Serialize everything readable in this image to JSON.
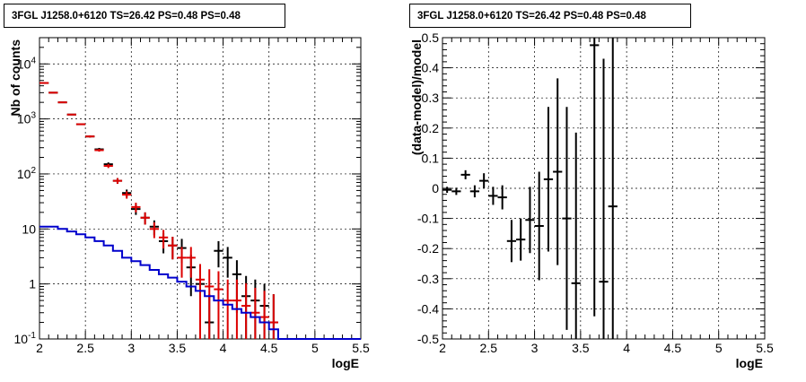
{
  "chart_data": [
    {
      "type": "histogram",
      "title": "3FGL J1258.0+6120 TS=26.42 PS=0.48 PS=0.48",
      "xlabel": "logE",
      "ylabel": "Nb of counts",
      "xlim": [
        2,
        5.5
      ],
      "ylim": [
        0.1,
        30000
      ],
      "yscale": "log",
      "grid": true,
      "xticks": [
        "2",
        "2.5",
        "3",
        "3.5",
        "4",
        "4.5",
        "5",
        "5.5"
      ],
      "yticks": [
        "10^{-1}",
        "1",
        "10",
        "10^{2}",
        "10^{3}",
        "10^{4}"
      ],
      "series": [
        {
          "color": "#000000",
          "style": "errorbar",
          "x": [
            2.05,
            2.15,
            2.25,
            2.35,
            2.45,
            2.55,
            2.65,
            2.75,
            2.85,
            2.95,
            3.05,
            3.15,
            3.25,
            3.35,
            3.45,
            3.55,
            3.65,
            3.75,
            3.85,
            3.95,
            4.05,
            4.15,
            4.25,
            4.35,
            4.45,
            4.55
          ],
          "y": [
            4500,
            3000,
            2000,
            1200,
            800,
            480,
            280,
            150,
            75,
            45,
            23,
            16,
            11,
            6,
            5,
            4.5,
            2,
            1,
            0.2,
            4,
            3,
            1.5,
            0.6,
            0.5,
            0.4,
            0.2
          ],
          "err": [
            67,
            55,
            45,
            35,
            28,
            22,
            17,
            12,
            9,
            7,
            5,
            4,
            3.3,
            2.4,
            2.2,
            2.1,
            1.4,
            1.0,
            0.45,
            2.0,
            1.7,
            1.2,
            0.8,
            0.7,
            0.6,
            0.45
          ]
        },
        {
          "color": "#dd0000",
          "style": "errorbar",
          "x": [
            2.05,
            2.15,
            2.25,
            2.35,
            2.45,
            2.55,
            2.65,
            2.75,
            2.85,
            2.95,
            3.05,
            3.15,
            3.25,
            3.35,
            3.45,
            3.55,
            3.65,
            3.75,
            3.85,
            3.95,
            4.05,
            4.15,
            4.25,
            4.35,
            4.45,
            4.55
          ],
          "y": [
            4500,
            3000,
            2000,
            1200,
            800,
            480,
            270,
            140,
            75,
            42,
            25,
            16,
            10,
            7,
            5,
            3,
            3,
            1.2,
            0.9,
            0.8,
            0.5,
            0.5,
            0.4,
            0.3,
            0.25,
            0.2
          ],
          "err": [
            67,
            55,
            45,
            35,
            28,
            22,
            16,
            12,
            9,
            6.5,
            5,
            4,
            3.2,
            2.6,
            2.2,
            1.7,
            1.7,
            1.1,
            0.95,
            0.9,
            0.7,
            0.7,
            0.63,
            0.55,
            0.5,
            0.45
          ]
        },
        {
          "color": "#0000cc",
          "style": "step",
          "x": [
            2.05,
            2.15,
            2.25,
            2.35,
            2.45,
            2.55,
            2.65,
            2.75,
            2.85,
            2.95,
            3.05,
            3.15,
            3.25,
            3.35,
            3.45,
            3.55,
            3.65,
            3.75,
            3.85,
            3.95,
            4.05,
            4.15,
            4.25,
            4.35,
            4.45,
            4.55,
            4.65,
            4.75,
            4.85,
            4.95,
            5.05,
            5.15,
            5.25,
            5.35,
            5.45
          ],
          "y": [
            11,
            11,
            10,
            9,
            8,
            7,
            6,
            5,
            4,
            3,
            2.6,
            2.2,
            1.8,
            1.5,
            1.3,
            1.1,
            0.9,
            0.75,
            0.6,
            0.5,
            0.42,
            0.35,
            0.3,
            0.25,
            0.2,
            0.15,
            0.1,
            0.1,
            0.1,
            0.1,
            0.1,
            0.1,
            0.1,
            0.1,
            0.1
          ]
        }
      ]
    },
    {
      "type": "scatter",
      "title": "3FGL J1258.0+6120 TS=26.42 PS=0.48 PS=0.48",
      "xlabel": "logE",
      "ylabel": "(data-model)/model",
      "xlim": [
        2,
        5.5
      ],
      "ylim": [
        -0.5,
        0.5
      ],
      "grid": true,
      "xticks": [
        "2",
        "2.5",
        "3",
        "3.5",
        "4",
        "4.5",
        "5",
        "5.5"
      ],
      "yticks": [
        "-0.5",
        "-0.4",
        "-0.3",
        "-0.2",
        "-0.1",
        "0",
        "0.1",
        "0.2",
        "0.3",
        "0.4",
        "0.5"
      ],
      "series": [
        {
          "color": "#000000",
          "style": "errorbar",
          "x": [
            2.05,
            2.15,
            2.25,
            2.35,
            2.45,
            2.55,
            2.65,
            2.75,
            2.85,
            2.95,
            3.05,
            3.15,
            3.25,
            3.35,
            3.45,
            3.65,
            3.75,
            3.85
          ],
          "y": [
            -0.005,
            -0.01,
            0.045,
            -0.01,
            0.025,
            -0.025,
            -0.03,
            -0.175,
            -0.17,
            -0.105,
            -0.125,
            0.03,
            0.055,
            -0.1,
            -0.315,
            0.475,
            -0.31,
            -0.06
          ],
          "err": [
            0.01,
            0.012,
            0.015,
            0.02,
            0.025,
            0.03,
            0.04,
            0.07,
            0.07,
            0.11,
            0.18,
            0.24,
            0.31,
            0.37,
            0.5,
            0.9,
            0.74,
            0.85
          ]
        }
      ]
    }
  ]
}
